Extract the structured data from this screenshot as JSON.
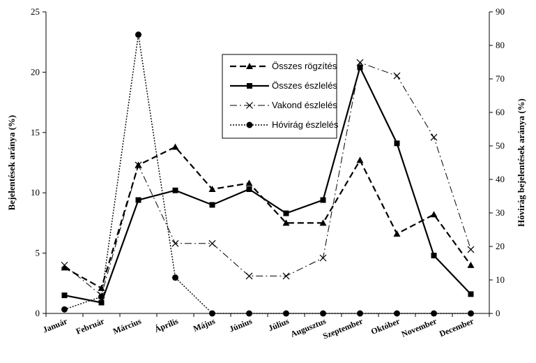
{
  "chart_data": {
    "type": "line",
    "title": "",
    "categories": [
      "Január",
      "Február",
      "Március",
      "Április",
      "Május",
      "Június",
      "Július",
      "Augusztus",
      "Szeptember",
      "Október",
      "November",
      "December"
    ],
    "ylabel": "Bejelentések aránya (%)",
    "y2label": "Hóvirág bejelentések aránya (%)",
    "ylim": [
      0,
      25
    ],
    "y2lim": [
      0,
      90
    ],
    "yticks": [
      "0",
      "5",
      "10",
      "15",
      "20",
      "25"
    ],
    "y2ticks": [
      "0",
      "10",
      "20",
      "30",
      "40",
      "50",
      "60",
      "70",
      "80",
      "90"
    ],
    "grid": false,
    "legend_position": "top-center",
    "series": [
      {
        "name": "Összes rögzítés",
        "axis": "left",
        "style": "dashed",
        "marker": "triangle",
        "color": "#000000",
        "values": [
          3.8,
          2.1,
          12.3,
          13.8,
          10.3,
          10.8,
          7.5,
          7.5,
          12.7,
          6.6,
          8.2,
          4.0
        ]
      },
      {
        "name": "Összes észlelés",
        "axis": "left",
        "style": "solid",
        "marker": "square",
        "color": "#000000",
        "values": [
          1.5,
          0.9,
          9.4,
          10.2,
          9.0,
          10.3,
          8.3,
          9.4,
          20.4,
          14.1,
          4.8,
          1.6
        ]
      },
      {
        "name": "Vakond észlelés",
        "axis": "left",
        "style": "dashdot",
        "marker": "x",
        "color": "#000000",
        "values": [
          4.0,
          1.5,
          12.3,
          5.8,
          5.8,
          3.1,
          3.1,
          4.6,
          20.8,
          19.7,
          14.6,
          5.3
        ]
      },
      {
        "name": "Hóvirág észlelés",
        "axis": "right",
        "style": "dotted",
        "marker": "circle",
        "color": "#000000",
        "values": [
          1.2,
          5.0,
          83.2,
          10.7,
          0,
          0,
          0,
          0,
          0,
          0,
          0,
          0
        ]
      }
    ]
  }
}
